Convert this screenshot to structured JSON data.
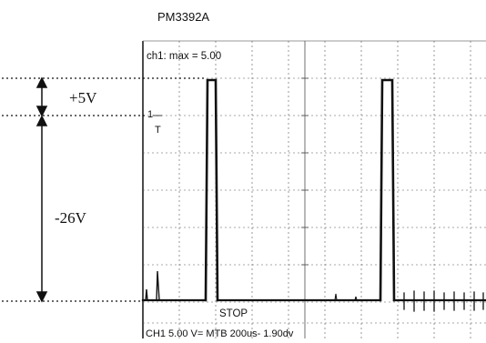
{
  "instrument": {
    "model": "PM3392A"
  },
  "screen": {
    "readout_top": "ch1:  max = 5.00",
    "trigger_marker": "T",
    "channel_marker": "1",
    "status": "STOP",
    "readout_bottom": "CH1 5.00 V=     MTB 200us- 1.90dv"
  },
  "annotations": {
    "upper_span_label": "+5V",
    "lower_span_label": "-26V"
  },
  "colors": {
    "trace": "#111111",
    "grid": "#555555",
    "background": "#ffffff"
  }
}
